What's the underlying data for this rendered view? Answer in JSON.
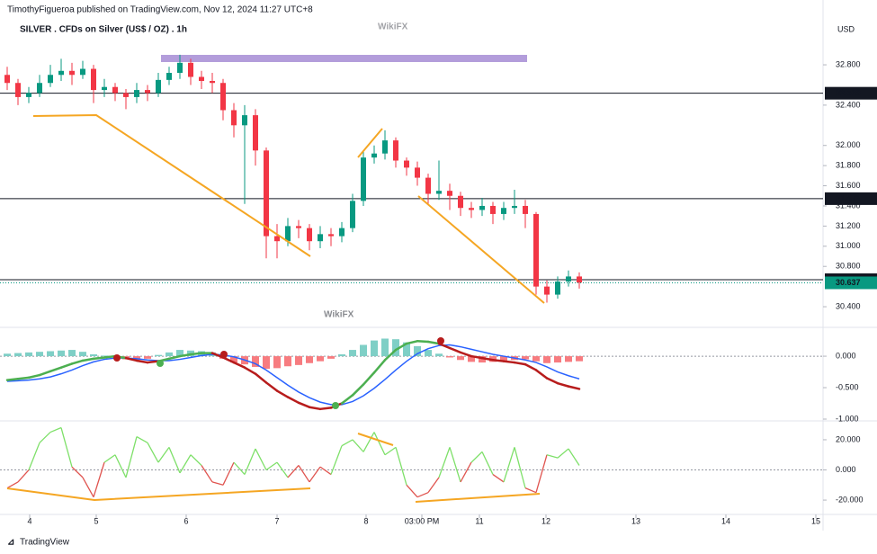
{
  "header": {
    "publisher": "TimothyFigueroa published on TradingView.com, Nov 12, 2024 11:27 UTC+8",
    "title": "SILVER . CFDs on Silver (US$ / OZ) . 1h",
    "currency": "USD",
    "watermark": "WikiFX"
  },
  "footer": "TradingView",
  "chart_data": [
    {
      "type": "candlestick",
      "up_color": "#089981",
      "down_color": "#f23645",
      "x": [
        2,
        5,
        8,
        11,
        14,
        17,
        20,
        23,
        26,
        29,
        32,
        35,
        38,
        41,
        44,
        47,
        50,
        53,
        56,
        59,
        62,
        65,
        68,
        71,
        74,
        77,
        80,
        83,
        86,
        89,
        92,
        95,
        98,
        101,
        104,
        107,
        110,
        113,
        116,
        119,
        122,
        125,
        128,
        131,
        134,
        137,
        140,
        143,
        146,
        149,
        152,
        155,
        158,
        161
      ],
      "open": [
        32.7,
        32.62,
        32.48,
        32.52,
        32.62,
        32.7,
        32.74,
        32.7,
        32.76,
        32.55,
        32.58,
        32.52,
        32.48,
        32.55,
        32.52,
        32.65,
        32.72,
        32.82,
        32.68,
        32.64,
        32.62,
        32.35,
        32.2,
        32.3,
        31.95,
        31.1,
        31.05,
        31.2,
        31.18,
        31.05,
        31.12,
        31.1,
        31.18,
        31.45,
        31.88,
        31.92,
        32.05,
        31.85,
        31.78,
        31.68,
        31.52,
        31.55,
        31.5,
        31.38,
        31.36,
        31.4,
        31.32,
        31.38,
        31.4,
        31.32,
        30.6,
        30.52,
        30.65,
        30.7
      ],
      "high": [
        32.78,
        32.66,
        32.58,
        32.7,
        32.8,
        32.86,
        32.82,
        32.84,
        32.8,
        32.66,
        32.62,
        32.56,
        32.62,
        32.6,
        32.72,
        32.78,
        32.9,
        32.86,
        32.74,
        32.72,
        32.66,
        32.42,
        32.4,
        32.36,
        31.98,
        31.22,
        31.28,
        31.26,
        31.22,
        31.2,
        31.18,
        31.24,
        31.52,
        31.94,
        32.0,
        32.15,
        32.08,
        31.88,
        31.84,
        31.72,
        31.85,
        31.62,
        31.54,
        31.44,
        31.48,
        31.44,
        31.44,
        31.56,
        31.46,
        31.34,
        30.66,
        30.7,
        30.76,
        30.74
      ],
      "low": [
        32.55,
        32.4,
        32.42,
        32.48,
        32.58,
        32.64,
        32.6,
        32.66,
        32.42,
        32.48,
        32.44,
        32.36,
        32.42,
        32.44,
        32.48,
        32.6,
        32.66,
        32.6,
        32.56,
        32.52,
        32.25,
        32.08,
        31.42,
        31.8,
        30.88,
        30.88,
        31.0,
        31.08,
        30.96,
        30.98,
        31.0,
        31.04,
        31.14,
        31.4,
        31.82,
        31.86,
        31.78,
        31.7,
        31.6,
        31.42,
        31.46,
        31.36,
        31.3,
        31.28,
        31.3,
        31.22,
        31.26,
        31.32,
        31.18,
        30.52,
        30.44,
        30.48,
        30.6,
        30.58
      ],
      "close": [
        32.62,
        32.48,
        32.52,
        32.62,
        32.7,
        32.74,
        32.7,
        32.76,
        32.55,
        32.58,
        32.52,
        32.48,
        32.55,
        32.52,
        32.65,
        32.72,
        32.82,
        32.68,
        32.64,
        32.62,
        32.35,
        32.2,
        32.3,
        31.95,
        31.1,
        31.05,
        31.2,
        31.18,
        31.05,
        31.12,
        31.1,
        31.18,
        31.45,
        31.88,
        31.92,
        32.05,
        31.85,
        31.78,
        31.68,
        31.52,
        31.55,
        31.5,
        31.38,
        31.36,
        31.4,
        31.32,
        31.38,
        31.4,
        31.32,
        30.6,
        30.52,
        30.65,
        30.7,
        30.64
      ],
      "xlim": [
        0,
        228.75
      ],
      "ylim": [
        30.213,
        33.443
      ],
      "yticks": [
        {
          "value": 30.4,
          "label": "30.400"
        },
        {
          "value": 30.8,
          "label": "30.800"
        },
        {
          "value": 31,
          "label": "31.000"
        },
        {
          "value": 31.2,
          "label": "31.200"
        },
        {
          "value": 31.4,
          "label": "31.400"
        },
        {
          "value": 31.6,
          "label": "31.600"
        },
        {
          "value": 31.8,
          "label": "31.800"
        },
        {
          "value": 32,
          "label": "32.000"
        },
        {
          "value": 32.4,
          "label": "32.400"
        },
        {
          "value": 32.8,
          "label": "32.800"
        }
      ],
      "levels": [
        32.518,
        31.472,
        30.668
      ],
      "last_price": 30.637,
      "last_color": "#089981"
    },
    {
      "type": "macd",
      "hist_up_color": "#7fcfc6",
      "hist_down_color": "#f77c80",
      "macd_up_color": "#4caf50",
      "macd_down_color": "#b71c1c",
      "signal_color": "#2962ff",
      "x": [
        2,
        5,
        8,
        11,
        14,
        17,
        20,
        23,
        26,
        29,
        32,
        35,
        38,
        41,
        44,
        47,
        50,
        53,
        56,
        59,
        62,
        65,
        68,
        71,
        74,
        77,
        80,
        83,
        86,
        89,
        92,
        95,
        98,
        101,
        104,
        107,
        110,
        113,
        116,
        119,
        122,
        125,
        128,
        131,
        134,
        137,
        140,
        143,
        146,
        149,
        152,
        155,
        158,
        161
      ],
      "histogram": [
        0.04,
        0.05,
        0.06,
        0.07,
        0.08,
        0.09,
        0.1,
        0.07,
        0.03,
        0.01,
        -0.02,
        -0.05,
        -0.06,
        -0.04,
        0.02,
        0.06,
        0.1,
        0.09,
        0.08,
        0.06,
        -0.04,
        -0.1,
        -0.13,
        -0.17,
        -0.2,
        -0.19,
        -0.16,
        -0.14,
        -0.11,
        -0.08,
        -0.04,
        0.03,
        0.1,
        0.18,
        0.25,
        0.28,
        0.27,
        0.22,
        0.16,
        0.1,
        0.04,
        -0.02,
        -0.06,
        -0.09,
        -0.1,
        -0.09,
        -0.07,
        -0.06,
        -0.05,
        -0.08,
        -0.11,
        -0.1,
        -0.09,
        -0.08
      ],
      "macd": [
        -0.38,
        -0.36,
        -0.34,
        -0.3,
        -0.24,
        -0.18,
        -0.12,
        -0.07,
        -0.04,
        -0.02,
        0.0,
        -0.03,
        -0.07,
        -0.1,
        -0.08,
        -0.04,
        0.0,
        0.03,
        0.05,
        0.05,
        -0.02,
        -0.1,
        -0.18,
        -0.28,
        -0.42,
        -0.55,
        -0.65,
        -0.74,
        -0.81,
        -0.84,
        -0.82,
        -0.75,
        -0.62,
        -0.45,
        -0.26,
        -0.06,
        0.1,
        0.2,
        0.24,
        0.23,
        0.2,
        0.13,
        0.06,
        0.0,
        -0.03,
        -0.06,
        -0.08,
        -0.1,
        -0.13,
        -0.22,
        -0.35,
        -0.43,
        -0.48,
        -0.52
      ],
      "signal": [
        -0.4,
        -0.39,
        -0.38,
        -0.36,
        -0.33,
        -0.28,
        -0.22,
        -0.15,
        -0.09,
        -0.05,
        -0.03,
        -0.03,
        -0.04,
        -0.06,
        -0.07,
        -0.07,
        -0.05,
        -0.02,
        0.01,
        0.03,
        0.02,
        -0.01,
        -0.06,
        -0.12,
        -0.22,
        -0.34,
        -0.46,
        -0.57,
        -0.66,
        -0.73,
        -0.77,
        -0.77,
        -0.72,
        -0.63,
        -0.51,
        -0.37,
        -0.22,
        -0.08,
        0.04,
        0.12,
        0.17,
        0.18,
        0.15,
        0.11,
        0.07,
        0.03,
        0.0,
        -0.03,
        -0.06,
        -0.1,
        -0.17,
        -0.25,
        -0.31,
        -0.36
      ],
      "xlim": [
        0,
        228.75
      ],
      "ylim": [
        -1.0,
        0.43
      ],
      "yticks": [
        {
          "value": 0,
          "label": "0.000"
        },
        {
          "value": -0.5,
          "label": "-0.500"
        },
        {
          "value": -1,
          "label": "-1.000"
        }
      ]
    },
    {
      "type": "oscillator",
      "up_color": "#7ee069",
      "down_color": "#e0544f",
      "x": [
        2,
        5,
        8,
        11,
        14,
        17,
        20,
        23,
        26,
        29,
        32,
        35,
        38,
        41,
        44,
        47,
        50,
        53,
        56,
        59,
        62,
        65,
        68,
        71,
        74,
        77,
        80,
        83,
        86,
        89,
        92,
        95,
        98,
        101,
        104,
        107,
        110,
        113,
        116,
        119,
        122,
        125,
        128,
        131,
        134,
        137,
        140,
        143,
        146,
        149,
        152,
        155,
        158,
        161
      ],
      "values": [
        -12,
        -8,
        0,
        18,
        25,
        28,
        2,
        -5,
        -18,
        5,
        10,
        -5,
        22,
        18,
        5,
        15,
        -2,
        10,
        3,
        -8,
        -10,
        5,
        -3,
        14,
        0,
        5,
        -5,
        3,
        -8,
        2,
        -3,
        16,
        20,
        12,
        25,
        10,
        15,
        -10,
        -18,
        -15,
        -5,
        15,
        -8,
        5,
        12,
        -3,
        -8,
        15,
        -12,
        -15,
        10,
        8,
        14,
        3
      ],
      "xlim": [
        0,
        228.75
      ],
      "ylim": [
        -29.5,
        31.3
      ],
      "yticks": [
        {
          "value": 20,
          "label": "20.000"
        },
        {
          "value": 0,
          "label": "0.000"
        },
        {
          "value": -20,
          "label": "-20.000"
        }
      ],
      "xticks": [
        {
          "value": 8.25,
          "label": "4"
        },
        {
          "value": 26.75,
          "label": "5"
        },
        {
          "value": 51.75,
          "label": "6"
        },
        {
          "value": 77,
          "label": "7"
        },
        {
          "value": 101.75,
          "label": "8"
        },
        {
          "value": 117.25,
          "label": "03:00 PM"
        },
        {
          "value": 133.25,
          "label": "11"
        },
        {
          "value": 151.75,
          "label": "12"
        },
        {
          "value": 176.75,
          "label": "13"
        },
        {
          "value": 201.75,
          "label": "14"
        },
        {
          "value": 226.75,
          "label": "15"
        }
      ]
    }
  ]
}
